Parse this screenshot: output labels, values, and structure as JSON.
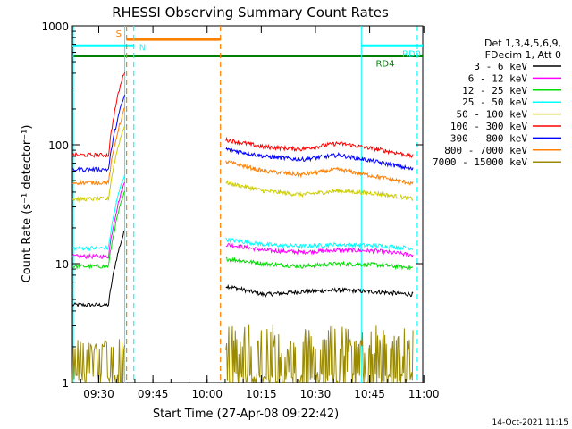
{
  "chart_data": {
    "type": "line",
    "title": "RHESSI Observing Summary Count Rates",
    "xlabel": "Start Time (27-Apr-08 09:22:42)",
    "ylabel": "Count Rate (s⁻¹ detector⁻¹)",
    "yscale": "log",
    "xlim_minutes": [
      0,
      97
    ],
    "ylim": [
      1,
      1000
    ],
    "x_ticks": [
      {
        "label": "09:30",
        "minute": 7.3
      },
      {
        "label": "09:45",
        "minute": 22.3
      },
      {
        "label": "10:00",
        "minute": 37.3
      },
      {
        "label": "10:15",
        "minute": 52.3
      },
      {
        "label": "10:30",
        "minute": 67.3
      },
      {
        "label": "10:45",
        "minute": 82.3
      },
      {
        "label": "11:00",
        "minute": 97.3
      }
    ],
    "y_ticks": [
      {
        "label": "1",
        "value": 1
      },
      {
        "label": "10",
        "value": 10
      },
      {
        "label": "100",
        "value": 100
      },
      {
        "label": "1000",
        "value": 1000
      }
    ],
    "legend_header": [
      "Det 1,3,4,5,6,9,",
      "FDecim 1, Att 0"
    ],
    "data_gap_minutes": [
      14.5,
      42.5
    ],
    "series": [
      {
        "name": "3 - 6 keV",
        "color": "#000000",
        "pre": 4.5,
        "post": [
          6.5,
          5.5,
          5.8,
          6.0,
          5.8,
          5.5
        ]
      },
      {
        "name": "6 - 12 keV",
        "color": "#ff00ff",
        "pre": 11.5,
        "post": [
          14.5,
          13.0,
          12.5,
          13.0,
          12.8,
          11.8
        ]
      },
      {
        "name": "12 - 25 keV",
        "color": "#00dd00",
        "pre": 9.5,
        "post": [
          11.0,
          10.0,
          9.5,
          10.0,
          9.8,
          9.2
        ]
      },
      {
        "name": "25 - 50 keV",
        "color": "#00ffff",
        "pre": 13.5,
        "post": [
          16.0,
          14.5,
          14.0,
          14.5,
          14.2,
          13.5
        ]
      },
      {
        "name": "50 - 100 keV",
        "color": "#cccc00",
        "pre": 35,
        "post": [
          48,
          41,
          38,
          41,
          39,
          35
        ]
      },
      {
        "name": "100 - 300 keV",
        "color": "#ff0000",
        "pre": 82,
        "post": [
          110,
          96,
          92,
          103,
          92,
          80
        ]
      },
      {
        "name": "300 - 800 keV",
        "color": "#0000ff",
        "pre": 62,
        "post": [
          92,
          80,
          75,
          82,
          72,
          62
        ]
      },
      {
        "name": "800 - 7000 keV",
        "color": "#ff7f00",
        "pre": 48,
        "post": [
          72,
          60,
          56,
          62,
          54,
          47
        ]
      },
      {
        "name": "7000 - 15000 keV",
        "color": "#9a8a00",
        "pre": 1.6,
        "post": [
          1.6,
          1.6,
          1.6,
          1.8,
          1.6,
          1.6
        ]
      }
    ],
    "annotations": [
      {
        "label": "S",
        "color": "#ff7f00",
        "start_min": 15.0,
        "end_min": 41.0,
        "level": 770
      },
      {
        "label": "N",
        "color": "#00ffff",
        "start_min": 0.0,
        "end_min": 17.0,
        "level": 680
      },
      {
        "label": "RD0",
        "color": "#00ffff",
        "start_min": 80.0,
        "end_min": 97.0,
        "level": 680
      },
      {
        "label": "RD4",
        "color": "#008000",
        "start_min": 0.0,
        "end_min": 97.0,
        "level": 560
      }
    ],
    "vertical_markers": [
      {
        "minute": 15.0,
        "color": "#ff7f00"
      },
      {
        "minute": 41.0,
        "color": "#ff7f00"
      },
      {
        "minute": 17.0,
        "color": "#00ffff"
      },
      {
        "minute": 95.5,
        "color": "#00ffff"
      }
    ]
  },
  "footer": {
    "timestamp": "14-Oct-2021 11:15"
  },
  "colors": {
    "axis": "#000000",
    "background": "#ffffff",
    "cyan_band": "#00ffff"
  }
}
